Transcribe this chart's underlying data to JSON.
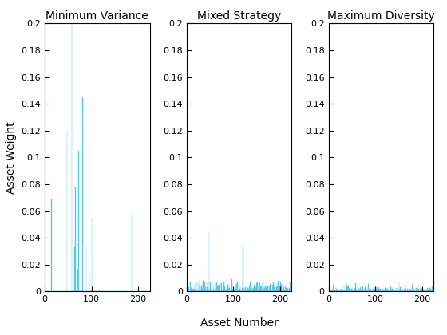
{
  "n_assets": 225,
  "titles": [
    "Minimum Variance",
    "Mixed Strategy",
    "Maximum Diversity"
  ],
  "ylabel": "Asset Weight",
  "xlabel": "Asset Number",
  "ylim": [
    0,
    0.2
  ],
  "yticks": [
    0,
    0.02,
    0.04,
    0.06,
    0.08,
    0.1,
    0.12,
    0.14,
    0.16,
    0.18,
    0.2
  ],
  "xlim": [
    0,
    225
  ],
  "xticks": [
    0,
    100,
    200
  ],
  "bar_color": "#5bc8e8",
  "background_color": "#ffffff",
  "title_fontsize": 10,
  "label_fontsize": 10,
  "tick_fontsize": 8,
  "mv_spikes": {
    "indices": [
      14,
      47,
      57,
      63,
      65,
      70,
      72,
      80,
      88,
      95,
      100,
      115,
      185
    ],
    "values": [
      0.069,
      0.12,
      0.2,
      0.033,
      0.078,
      0.016,
      0.105,
      0.145,
      0.034,
      0.015,
      0.055,
      0.002,
      0.057
    ]
  },
  "ms_big_spikes": {
    "indices": [
      47,
      120
    ],
    "values": [
      0.044,
      0.034
    ]
  },
  "ms_noise_scale": 0.004,
  "ms_noise_clip": 0.02,
  "md_noise_scale": 0.0022,
  "md_noise_clip": 0.008
}
